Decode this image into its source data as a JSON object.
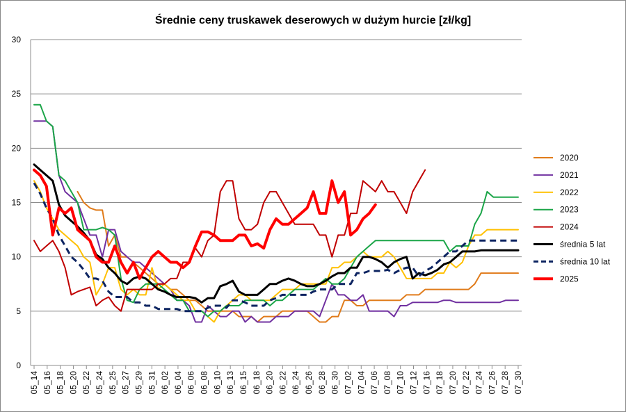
{
  "chart_data": {
    "type": "line",
    "title": "Średnie ceny truskawek deserowych w dużym hurcie [zł/kg]",
    "xlabel": "",
    "ylabel": "",
    "ylim": [
      0,
      30
    ],
    "yticks": [
      0,
      5,
      10,
      15,
      20,
      25,
      30
    ],
    "grid": true,
    "legend_position": "right",
    "categories": [
      "05_14",
      "05_15",
      "05_16",
      "05_17",
      "05_18",
      "05_19",
      "05_20",
      "05_21",
      "05_22",
      "05_23",
      "05_24",
      "05_25",
      "05_26",
      "05_27",
      "05_28",
      "05_29",
      "05_30",
      "05_31",
      "06_01",
      "06_02",
      "06_03",
      "06_04",
      "06_05",
      "06_06",
      "06_07",
      "06_08",
      "06_09",
      "06_10",
      "06_11",
      "06_12",
      "06_13",
      "06_14",
      "06_15",
      "06_16",
      "06_17",
      "06_18",
      "06_19",
      "06_20",
      "06_21",
      "06_22",
      "06_23",
      "06_24",
      "06_25",
      "06_26",
      "06_27",
      "06_28",
      "06_29",
      "06_30",
      "07_01",
      "07_02",
      "07_03",
      "07_04",
      "07_05",
      "07_06",
      "07_07",
      "07_08",
      "07_09",
      "07_10",
      "07_11",
      "07_12",
      "07_13",
      "07_14",
      "07_15",
      "07_16",
      "07_17",
      "07_18",
      "07_19",
      "07_20",
      "07_21",
      "07_22",
      "07_23",
      "07_24",
      "07_25",
      "07_26",
      "07_27",
      "07_28",
      "07_29",
      "07_30",
      "07_31"
    ],
    "tick_labels": [
      "05_14",
      "05_16",
      "05_18",
      "05_20",
      "05_22",
      "05_24",
      "05_25",
      "05_27",
      "05_29",
      "05_31",
      "06_02",
      "06_04",
      "06_06",
      "06_08",
      "06_10",
      "06_13",
      "06_15",
      "06_18",
      "06_20",
      "06_22",
      "06_24",
      "06_26",
      "06_28",
      "06_30",
      "07_02",
      "07_04",
      "07_06",
      "07_08",
      "07_10",
      "07_12",
      "07_16",
      "07_18",
      "07_20",
      "07_22",
      "07_24",
      "07_26",
      "07_28",
      "07_30"
    ],
    "series": [
      {
        "name": "2020",
        "color": "#e07b1a",
        "width": 2,
        "dash": "",
        "values": [
          null,
          null,
          null,
          null,
          null,
          null,
          null,
          16,
          15,
          14.5,
          14.3,
          14.3,
          11,
          12,
          10,
          10,
          9.5,
          9,
          8.5,
          8,
          7.5,
          7.5,
          7,
          7,
          6.5,
          6,
          6,
          5.5,
          5,
          5,
          5,
          5,
          5,
          4.5,
          4.5,
          4.5,
          4,
          4.5,
          4.5,
          4.5,
          5,
          5,
          5,
          5,
          5,
          4.5,
          4,
          4,
          4.5,
          4.5,
          6,
          6,
          5.5,
          5.5,
          6,
          6,
          6,
          6,
          6,
          6,
          6.5,
          6.5,
          6.5,
          7,
          7,
          7,
          7,
          7,
          7,
          7,
          7,
          7.5,
          8.5,
          8.5,
          8.5,
          8.5,
          8.5,
          8.5,
          8.5
        ]
      },
      {
        "name": "2021",
        "color": "#7030a0",
        "width": 2,
        "dash": "",
        "values": [
          22.5,
          22.5,
          22.5,
          22,
          17.5,
          16,
          15.5,
          15,
          13.5,
          12,
          12,
          10,
          12.5,
          12.5,
          10.5,
          10,
          9.5,
          9.5,
          9,
          8.5,
          8,
          7.5,
          7,
          6,
          6,
          5.5,
          4,
          4,
          5.5,
          5,
          4.5,
          4.5,
          5,
          5,
          4,
          4.5,
          4,
          4,
          4,
          4.5,
          4.5,
          4.5,
          5,
          5,
          5,
          5,
          4.5,
          6,
          7.5,
          6.5,
          6.5,
          6,
          6,
          6.5,
          5,
          5,
          5,
          5,
          4.5,
          5.5,
          5.5,
          5.8,
          5.8,
          5.8,
          5.8,
          5.8,
          6,
          6,
          5.8,
          5.8,
          5.8,
          5.8,
          5.8,
          5.8,
          5.8,
          5.8,
          6,
          6,
          6
        ]
      },
      {
        "name": "2022",
        "color": "#ffc000",
        "width": 2,
        "dash": "",
        "values": [
          17,
          16,
          14.5,
          13.5,
          12.5,
          12,
          11.5,
          11,
          10,
          9.5,
          6.5,
          7.5,
          9,
          9,
          7,
          6.5,
          7,
          6.5,
          6.5,
          9,
          7,
          7.5,
          7,
          6.5,
          6,
          6,
          5,
          5,
          4.5,
          4,
          5,
          5.5,
          6,
          6.5,
          6.5,
          6,
          6,
          6,
          6,
          6.5,
          7,
          7,
          7,
          7.5,
          7.5,
          7.5,
          7.5,
          7.5,
          9,
          9,
          9.5,
          9.5,
          10,
          10.5,
          10,
          10,
          10,
          10.5,
          10,
          9,
          8,
          8,
          8,
          8,
          8,
          8.5,
          8.5,
          9.5,
          9,
          9.5,
          11,
          12,
          12,
          12.5,
          12.5,
          12.5,
          12.5,
          12.5,
          12.5
        ]
      },
      {
        "name": "2023",
        "color": "#1ba548",
        "width": 2,
        "dash": "",
        "values": [
          24,
          24,
          22.5,
          22,
          17.5,
          17,
          16,
          15,
          12.5,
          12.5,
          12.5,
          12.7,
          12.5,
          12,
          8,
          6,
          5.8,
          7,
          7.5,
          7.5,
          7.5,
          7,
          6.5,
          6,
          6,
          5,
          5,
          5,
          4.5,
          5,
          5,
          5.5,
          5.5,
          5.5,
          6,
          6,
          6,
          6,
          5.5,
          6,
          6,
          6.5,
          7,
          7,
          7,
          7,
          7.5,
          8,
          7.5,
          7.5,
          8,
          9,
          10,
          10.5,
          11,
          11.5,
          11.5,
          11.5,
          11.5,
          11.5,
          11.5,
          11.5,
          11.5,
          11.5,
          11.5,
          11.5,
          11.5,
          10.5,
          11,
          11,
          11,
          13,
          14,
          16,
          15.5,
          15.5,
          15.5,
          15.5,
          15.5
        ]
      },
      {
        "name": "2024",
        "color": "#c00000",
        "width": 2,
        "dash": "",
        "values": [
          11.5,
          10.5,
          11,
          11.5,
          10.5,
          9,
          6.5,
          6.8,
          7,
          7.2,
          5.5,
          6,
          6.3,
          5.5,
          5,
          7,
          7,
          7,
          7,
          7,
          7.5,
          7.5,
          8,
          8,
          9.5,
          9.5,
          10.8,
          10,
          11.5,
          12,
          16,
          17,
          17,
          13.5,
          12.5,
          12.5,
          13,
          15,
          16,
          16,
          15,
          14,
          13,
          13,
          13,
          13,
          12,
          12,
          10,
          12,
          12,
          14,
          14,
          17,
          16.5,
          16,
          17,
          16,
          16,
          15,
          14,
          16,
          17,
          18,
          null,
          null,
          null,
          null,
          null,
          null,
          null,
          null,
          null,
          null,
          null,
          null,
          null,
          null,
          null
        ]
      },
      {
        "name": "średnia 5 lat",
        "color": "#000000",
        "width": 3,
        "dash": "",
        "values": [
          18.5,
          18,
          17.5,
          17,
          14.8,
          13.8,
          13.3,
          12.8,
          12.2,
          11.5,
          10.2,
          9.8,
          9,
          8.5,
          7.8,
          7.5,
          8,
          8.2,
          8,
          7.5,
          7,
          6.8,
          6.5,
          6.3,
          6.3,
          6.3,
          6.2,
          5.8,
          6.2,
          6.2,
          7.3,
          7.5,
          7.8,
          6.8,
          6.5,
          6.5,
          6.5,
          7,
          7.5,
          7.5,
          7.8,
          8,
          7.8,
          7.5,
          7.3,
          7.3,
          7.5,
          7.8,
          8.2,
          8.5,
          8.5,
          9,
          9,
          10,
          10,
          9.8,
          9.5,
          9,
          9.5,
          9.8,
          10,
          8,
          8.5,
          8.3,
          8.5,
          8.8,
          9.3,
          9.5,
          10,
          10.5,
          10.5,
          10.5,
          10.6,
          10.6,
          10.6,
          10.6,
          10.6,
          10.6,
          10.6
        ]
      },
      {
        "name": "średnia 10 lat",
        "color": "#0d2461",
        "width": 3,
        "dash": "9,6",
        "values": [
          16.8,
          15.8,
          14.5,
          13.5,
          12,
          11,
          10,
          9.5,
          8.8,
          8,
          8,
          7.8,
          6.8,
          6.3,
          6.3,
          6.3,
          5.8,
          5.8,
          5.5,
          5.5,
          5.2,
          5.2,
          5.2,
          5.2,
          5,
          5,
          5,
          5,
          5.3,
          5.5,
          5.5,
          5.3,
          6,
          6,
          5.8,
          5.5,
          5.5,
          5.5,
          6,
          6.2,
          6.5,
          6.5,
          6.5,
          6.5,
          6.5,
          6.8,
          7,
          7,
          7,
          7.5,
          7.5,
          7.5,
          8.5,
          8.5,
          8.7,
          8.7,
          8.7,
          8.8,
          8.5,
          8.8,
          9,
          9,
          8.2,
          8.7,
          9,
          9.5,
          10,
          10.5,
          10.5,
          11,
          11.5,
          11.5,
          11.5,
          11.5,
          11.5,
          11.5,
          11.5,
          11.5,
          11.5
        ]
      },
      {
        "name": "2025",
        "color": "#ff0000",
        "width": 4,
        "dash": "",
        "values": [
          18,
          17.5,
          16.5,
          12,
          14.5,
          14,
          14.5,
          12.5,
          12,
          11.5,
          10,
          9.5,
          9.5,
          11,
          9.5,
          8.5,
          9.5,
          8,
          9,
          10,
          10.5,
          10,
          9.5,
          9.5,
          9,
          9.5,
          11,
          12.3,
          12.3,
          12,
          11.5,
          11.5,
          11.5,
          12,
          12,
          11,
          11.2,
          10.8,
          12.5,
          13.5,
          13,
          13,
          13.5,
          14,
          14.5,
          16,
          14,
          14,
          17,
          15,
          16,
          12,
          12.5,
          13.5,
          14,
          14.8,
          null,
          null,
          null,
          null,
          null,
          null,
          null,
          null,
          null,
          null,
          null,
          null,
          null,
          null,
          null,
          null,
          null,
          null,
          null,
          null,
          null,
          null,
          null
        ]
      }
    ]
  }
}
